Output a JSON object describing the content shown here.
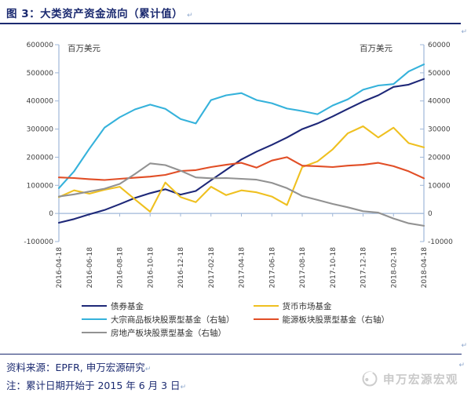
{
  "title": {
    "text": "图 3：大类资产资金流向（累计值）"
  },
  "marks": {
    "return_mark": "↵"
  },
  "chart_data": {
    "type": "line",
    "title": "大类资产资金流向（累计值）",
    "gridlines": false,
    "legend_position": "bottom",
    "left_axis": {
      "unit": "百万美元",
      "min": -100000,
      "max": 600000,
      "tick_step": 100000,
      "ticks": [
        600000,
        500000,
        400000,
        300000,
        200000,
        100000,
        0,
        -100000
      ]
    },
    "right_axis": {
      "unit": "百万美元",
      "min": -10000,
      "max": 60000,
      "tick_step": 10000,
      "ticks": [
        60000,
        50000,
        40000,
        30000,
        20000,
        10000,
        0,
        -10000
      ]
    },
    "x_tick_labels": [
      "2016-04-18",
      "2016-06-18",
      "2016-08-18",
      "2016-10-18",
      "2016-12-18",
      "2017-02-18",
      "2017-04-18",
      "2017-06-18",
      "2017-08-18",
      "2017-10-18",
      "2017-12-18",
      "2018-02-18",
      "2018-04-18"
    ],
    "x_months": [
      "2016-04",
      "2016-05",
      "2016-06",
      "2016-07",
      "2016-08",
      "2016-09",
      "2016-10",
      "2016-11",
      "2016-12",
      "2017-01",
      "2017-02",
      "2017-03",
      "2017-04",
      "2017-05",
      "2017-06",
      "2017-07",
      "2017-08",
      "2017-09",
      "2017-10",
      "2017-11",
      "2017-12",
      "2018-01",
      "2018-02",
      "2018-03",
      "2018-04"
    ],
    "series": [
      {
        "name": "债券基金",
        "axis": "left",
        "color": "#1E2878",
        "values": [
          -33000,
          -20000,
          -3000,
          12000,
          33000,
          55000,
          72000,
          86000,
          67000,
          80000,
          118000,
          155000,
          192000,
          220000,
          244000,
          270000,
          300000,
          320000,
          345000,
          372000,
          398000,
          420000,
          450000,
          458000,
          478000
        ]
      },
      {
        "name": "货币市场基金",
        "axis": "left",
        "color": "#EFC020",
        "values": [
          58000,
          82000,
          70000,
          84000,
          95000,
          50000,
          6000,
          110000,
          58000,
          40000,
          95000,
          65000,
          82000,
          75000,
          60000,
          30000,
          165000,
          185000,
          228000,
          285000,
          310000,
          270000,
          305000,
          250000,
          235000
        ]
      },
      {
        "name": "大宗商品板块股票型基金（右轴）",
        "axis": "right",
        "color": "#35B2DB",
        "values": [
          9000,
          15000,
          23000,
          30500,
          34200,
          37000,
          38700,
          37200,
          33600,
          32000,
          40300,
          42000,
          42800,
          40300,
          39200,
          37300,
          36400,
          35300,
          38400,
          40600,
          44000,
          45500,
          46000,
          50500,
          53000
        ]
      },
      {
        "name": "能源板块股票型基金（右轴）",
        "axis": "right",
        "color": "#E14E26",
        "values": [
          12800,
          12600,
          12200,
          11900,
          12300,
          12700,
          13100,
          13700,
          15100,
          15400,
          16500,
          17300,
          18000,
          16300,
          18800,
          20000,
          17000,
          16800,
          16500,
          17000,
          17300,
          18000,
          16800,
          15000,
          12500
        ]
      },
      {
        "name": "房地产板块股票型基金（右轴）",
        "axis": "right",
        "color": "#929292",
        "values": [
          6000,
          6800,
          7800,
          8800,
          10500,
          14000,
          17800,
          17200,
          15200,
          12800,
          12500,
          12600,
          12300,
          12000,
          10900,
          9000,
          6200,
          4800,
          3400,
          2200,
          800,
          300,
          -1800,
          -3500,
          -4400
        ]
      }
    ],
    "axis_color": "#9FB7D8",
    "tick_label_color": "#404040"
  },
  "footer": {
    "source": "资料来源：EPFR, 申万宏源研究",
    "note": "注：累计日期开始于 2015 年 6 月 3 日",
    "brand": "申万宏源宏观"
  }
}
